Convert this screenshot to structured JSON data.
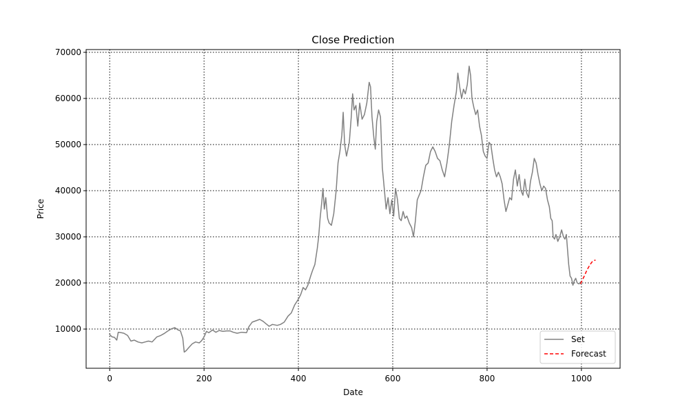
{
  "chart_data": {
    "type": "line",
    "title": "Close Prediction",
    "xlabel": "Date",
    "ylabel": "Price",
    "xlim": [
      -50,
      1082
    ],
    "ylim": [
      1500,
      70600
    ],
    "xticks": [
      0,
      200,
      400,
      600,
      800,
      1000
    ],
    "yticks": [
      10000,
      20000,
      30000,
      40000,
      50000,
      60000,
      70000
    ],
    "grid": true,
    "legend_position": "lower-right",
    "series": [
      {
        "name": "Set",
        "color": "#808080",
        "style": "solid",
        "points": [
          [
            0,
            8800
          ],
          [
            5,
            8300
          ],
          [
            10,
            8200
          ],
          [
            15,
            7600
          ],
          [
            18,
            9300
          ],
          [
            25,
            9200
          ],
          [
            30,
            9100
          ],
          [
            38,
            8600
          ],
          [
            45,
            7400
          ],
          [
            52,
            7600
          ],
          [
            60,
            7200
          ],
          [
            68,
            7000
          ],
          [
            75,
            7200
          ],
          [
            82,
            7400
          ],
          [
            90,
            7200
          ],
          [
            100,
            8300
          ],
          [
            108,
            8600
          ],
          [
            115,
            9000
          ],
          [
            122,
            9500
          ],
          [
            130,
            10000
          ],
          [
            138,
            10300
          ],
          [
            145,
            9800
          ],
          [
            150,
            9600
          ],
          [
            155,
            8000
          ],
          [
            158,
            5000
          ],
          [
            162,
            5300
          ],
          [
            168,
            6000
          ],
          [
            175,
            6800
          ],
          [
            182,
            7200
          ],
          [
            190,
            7000
          ],
          [
            195,
            7500
          ],
          [
            200,
            8300
          ],
          [
            205,
            9500
          ],
          [
            210,
            9200
          ],
          [
            218,
            9800
          ],
          [
            225,
            9300
          ],
          [
            232,
            9700
          ],
          [
            240,
            9500
          ],
          [
            248,
            9600
          ],
          [
            255,
            9600
          ],
          [
            262,
            9300
          ],
          [
            270,
            9100
          ],
          [
            280,
            9300
          ],
          [
            290,
            9200
          ],
          [
            295,
            10500
          ],
          [
            302,
            11500
          ],
          [
            310,
            11800
          ],
          [
            318,
            12100
          ],
          [
            325,
            11700
          ],
          [
            332,
            11100
          ],
          [
            338,
            10600
          ],
          [
            345,
            11000
          ],
          [
            355,
            10800
          ],
          [
            362,
            11000
          ],
          [
            370,
            11500
          ],
          [
            378,
            12800
          ],
          [
            385,
            13500
          ],
          [
            392,
            15200
          ],
          [
            400,
            16500
          ],
          [
            405,
            17500
          ],
          [
            410,
            19000
          ],
          [
            415,
            18500
          ],
          [
            420,
            19500
          ],
          [
            426,
            21500
          ],
          [
            430,
            22700
          ],
          [
            435,
            24000
          ],
          [
            440,
            27500
          ],
          [
            443,
            30000
          ],
          [
            446,
            34000
          ],
          [
            450,
            38000
          ],
          [
            452,
            40500
          ],
          [
            455,
            36000
          ],
          [
            458,
            38500
          ],
          [
            462,
            34000
          ],
          [
            465,
            33000
          ],
          [
            470,
            32500
          ],
          [
            475,
            35000
          ],
          [
            480,
            40000
          ],
          [
            484,
            46000
          ],
          [
            488,
            48500
          ],
          [
            492,
            52000
          ],
          [
            495,
            57000
          ],
          [
            498,
            50000
          ],
          [
            502,
            47500
          ],
          [
            505,
            49000
          ],
          [
            508,
            50500
          ],
          [
            512,
            56000
          ],
          [
            515,
            61000
          ],
          [
            518,
            57500
          ],
          [
            522,
            58500
          ],
          [
            526,
            54000
          ],
          [
            530,
            59000
          ],
          [
            535,
            55500
          ],
          [
            540,
            56500
          ],
          [
            545,
            59000
          ],
          [
            550,
            63500
          ],
          [
            553,
            62500
          ],
          [
            556,
            56000
          ],
          [
            560,
            51500
          ],
          [
            563,
            49000
          ],
          [
            566,
            55000
          ],
          [
            570,
            57500
          ],
          [
            574,
            56000
          ],
          [
            578,
            45000
          ],
          [
            582,
            40500
          ],
          [
            586,
            36000
          ],
          [
            590,
            38500
          ],
          [
            594,
            35000
          ],
          [
            598,
            38000
          ],
          [
            602,
            34500
          ],
          [
            606,
            40500
          ],
          [
            610,
            38000
          ],
          [
            614,
            34000
          ],
          [
            618,
            33500
          ],
          [
            622,
            35500
          ],
          [
            626,
            34000
          ],
          [
            630,
            34500
          ],
          [
            635,
            33000
          ],
          [
            640,
            32000
          ],
          [
            644,
            30000
          ],
          [
            648,
            33500
          ],
          [
            652,
            38000
          ],
          [
            656,
            39000
          ],
          [
            660,
            40000
          ],
          [
            665,
            43000
          ],
          [
            670,
            45500
          ],
          [
            675,
            46000
          ],
          [
            680,
            48500
          ],
          [
            685,
            49500
          ],
          [
            690,
            48500
          ],
          [
            695,
            47000
          ],
          [
            700,
            46500
          ],
          [
            705,
            44500
          ],
          [
            710,
            43000
          ],
          [
            715,
            46000
          ],
          [
            720,
            50000
          ],
          [
            725,
            55000
          ],
          [
            730,
            58500
          ],
          [
            735,
            61500
          ],
          [
            738,
            65500
          ],
          [
            742,
            62500
          ],
          [
            746,
            60000
          ],
          [
            750,
            62000
          ],
          [
            754,
            61000
          ],
          [
            758,
            63000
          ],
          [
            762,
            67000
          ],
          [
            765,
            65000
          ],
          [
            768,
            60000
          ],
          [
            772,
            58000
          ],
          [
            776,
            56500
          ],
          [
            780,
            57500
          ],
          [
            784,
            54000
          ],
          [
            788,
            52000
          ],
          [
            792,
            48500
          ],
          [
            796,
            47500
          ],
          [
            800,
            47000
          ],
          [
            804,
            50500
          ],
          [
            808,
            50000
          ],
          [
            812,
            47000
          ],
          [
            816,
            44500
          ],
          [
            820,
            43000
          ],
          [
            824,
            44000
          ],
          [
            828,
            43000
          ],
          [
            832,
            41500
          ],
          [
            836,
            38000
          ],
          [
            840,
            35500
          ],
          [
            844,
            37000
          ],
          [
            848,
            38500
          ],
          [
            852,
            38000
          ],
          [
            856,
            42500
          ],
          [
            860,
            44500
          ],
          [
            864,
            41000
          ],
          [
            868,
            43500
          ],
          [
            872,
            40000
          ],
          [
            876,
            39000
          ],
          [
            880,
            42500
          ],
          [
            884,
            39500
          ],
          [
            888,
            38500
          ],
          [
            892,
            42000
          ],
          [
            896,
            44000
          ],
          [
            900,
            47000
          ],
          [
            904,
            46000
          ],
          [
            908,
            43500
          ],
          [
            912,
            41500
          ],
          [
            916,
            40000
          ],
          [
            920,
            41000
          ],
          [
            924,
            40500
          ],
          [
            928,
            38000
          ],
          [
            932,
            36500
          ],
          [
            935,
            34000
          ],
          [
            938,
            33500
          ],
          [
            940,
            30000
          ],
          [
            943,
            29500
          ],
          [
            946,
            30500
          ],
          [
            950,
            29000
          ],
          [
            954,
            30000
          ],
          [
            958,
            31500
          ],
          [
            962,
            30000
          ],
          [
            965,
            29500
          ],
          [
            968,
            30500
          ],
          [
            970,
            28000
          ],
          [
            973,
            24000
          ],
          [
            976,
            21500
          ],
          [
            979,
            21000
          ],
          [
            982,
            19500
          ],
          [
            985,
            20500
          ],
          [
            988,
            21000
          ],
          [
            991,
            20000
          ],
          [
            995,
            19800
          ],
          [
            998,
            20200
          ]
        ]
      },
      {
        "name": "Forecast",
        "color": "#ff0000",
        "style": "dashed",
        "points": [
          [
            998,
            19800
          ],
          [
            1002,
            20600
          ],
          [
            1006,
            21500
          ],
          [
            1010,
            22400
          ],
          [
            1014,
            23200
          ],
          [
            1018,
            23900
          ],
          [
            1022,
            24500
          ],
          [
            1026,
            24850
          ],
          [
            1030,
            24950
          ]
        ]
      }
    ]
  }
}
